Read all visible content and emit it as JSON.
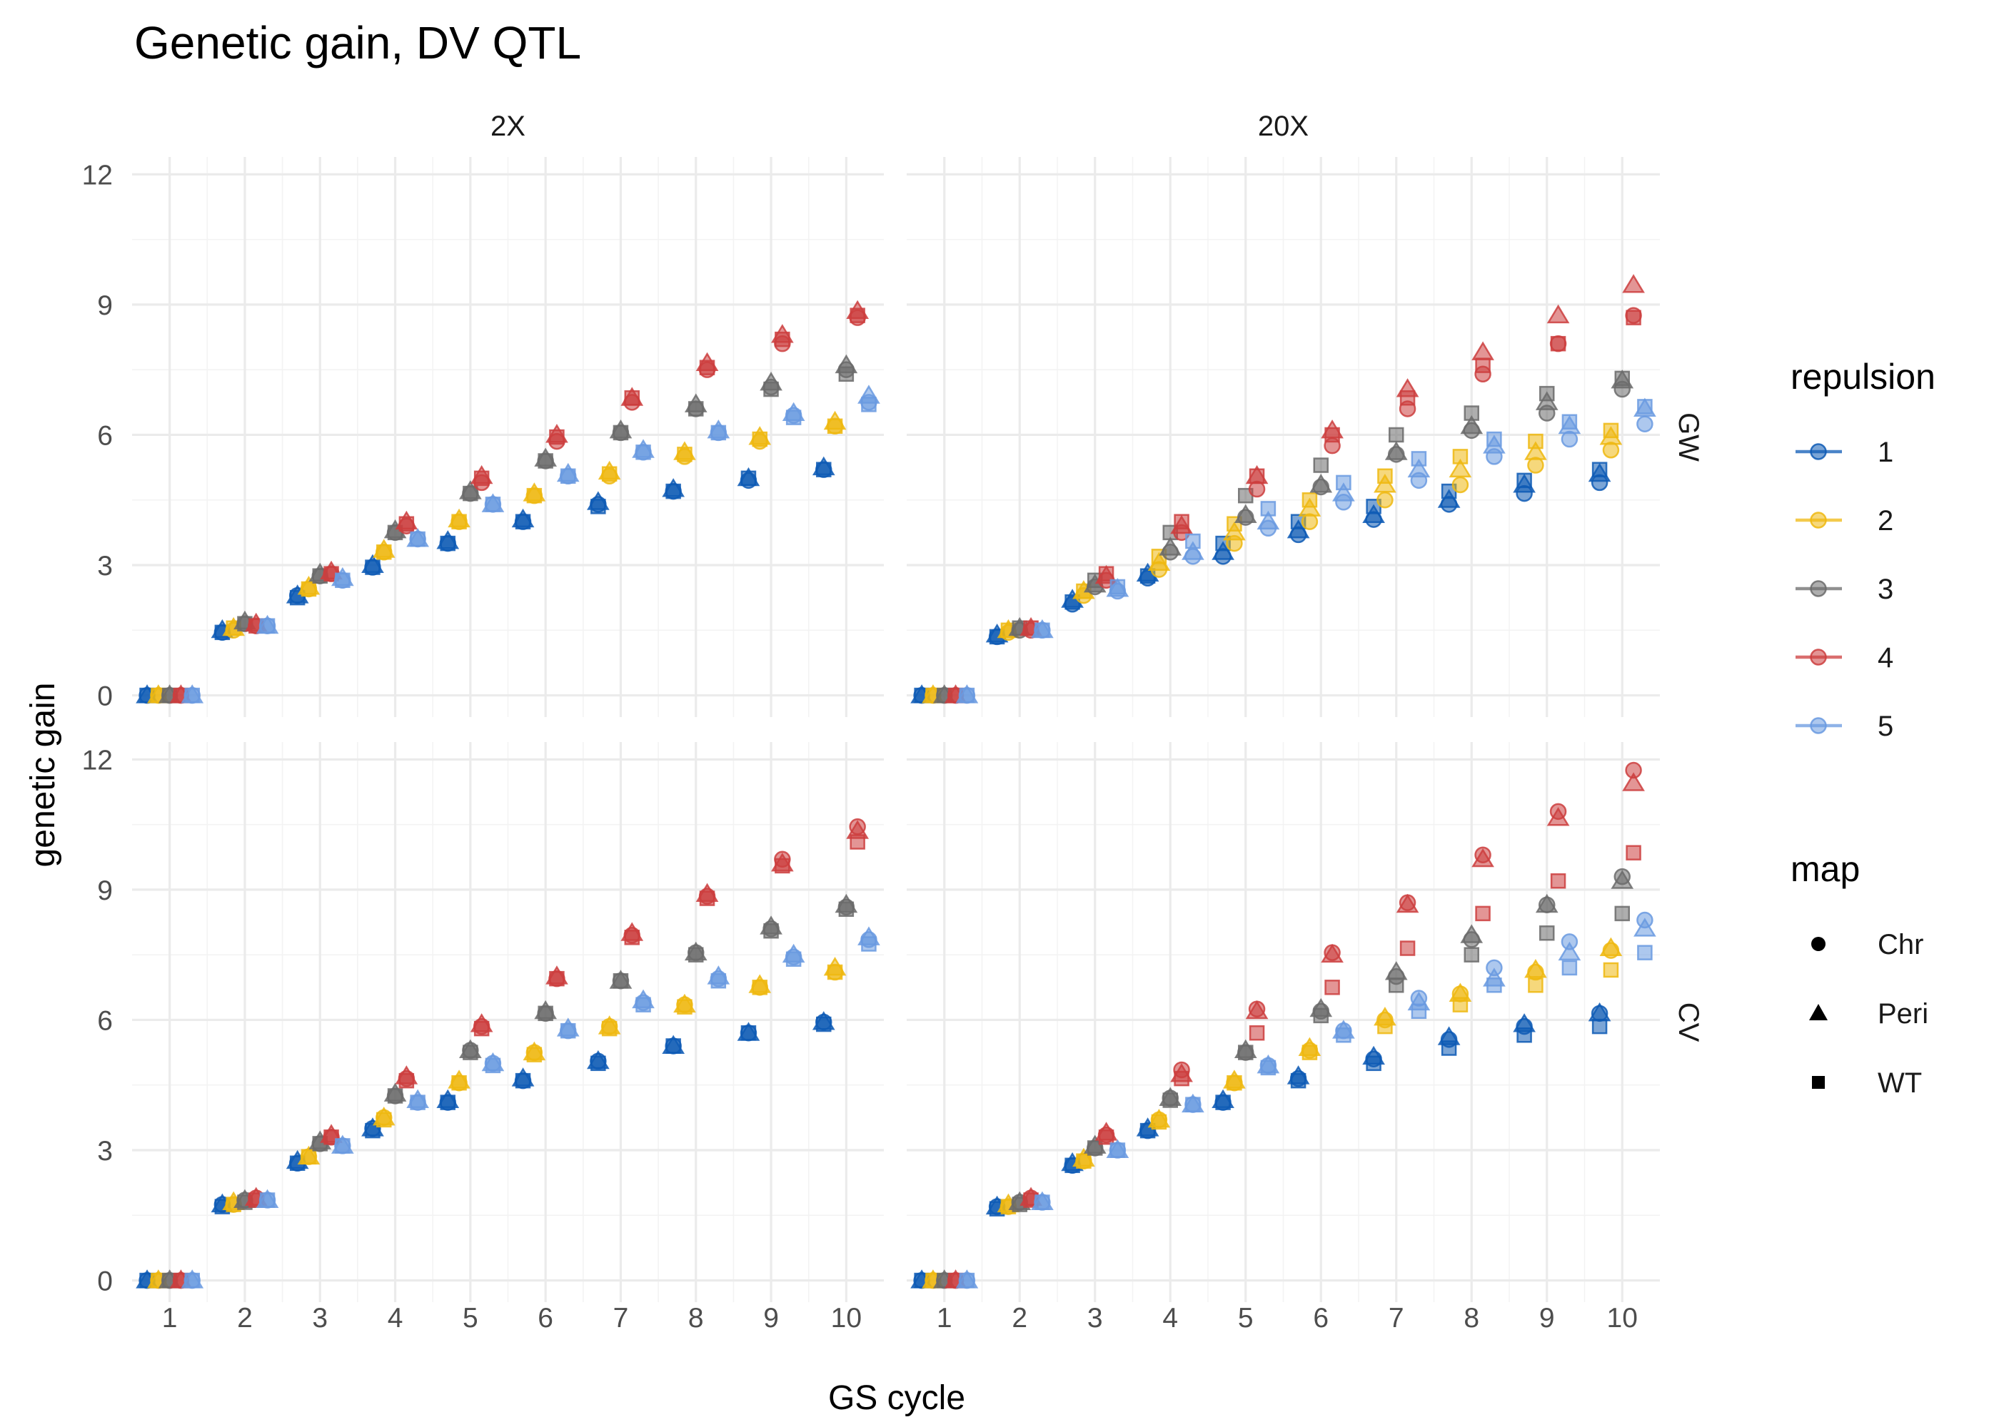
{
  "chart_data": {
    "type": "scatter",
    "title": "Genetic gain, DV QTL",
    "xlabel": "GS cycle",
    "ylabel": "genetic gain",
    "x_ticks": [
      "1",
      "2",
      "3",
      "4",
      "5",
      "6",
      "7",
      "8",
      "9",
      "10"
    ],
    "y_ticks": [
      "0",
      "3",
      "6",
      "9",
      "12"
    ],
    "ylim": [
      -0.5,
      12.4
    ],
    "xlim": [
      0.5,
      10.5
    ],
    "grid": true,
    "columns": [
      "2X",
      "20X"
    ],
    "rows": [
      "GW",
      "CV"
    ],
    "legend_position": "right",
    "repulsion_legend": {
      "title": "repulsion",
      "entries": [
        {
          "label": "1",
          "color": "#0e5bb5"
        },
        {
          "label": "2",
          "color": "#efb810"
        },
        {
          "label": "3",
          "color": "#6b6b6b"
        },
        {
          "label": "4",
          "color": "#cc3e3e"
        },
        {
          "label": "5",
          "color": "#6a9ae0"
        }
      ]
    },
    "map_legend": {
      "title": "map",
      "entries": [
        {
          "label": "Chr",
          "shape": "circle"
        },
        {
          "label": "Peri",
          "shape": "triangle"
        },
        {
          "label": "WT",
          "shape": "square"
        }
      ]
    },
    "panels": [
      {
        "column": "2X",
        "row": "GW",
        "series": {
          "1": {
            "Chr": [
              0,
              1.45,
              2.3,
              2.95,
              3.5,
              4.0,
              4.4,
              4.7,
              4.95,
              5.2
            ],
            "Peri": [
              0,
              1.5,
              2.3,
              3.0,
              3.55,
              4.05,
              4.45,
              4.75,
              5.0,
              5.25
            ],
            "WT": [
              0,
              1.45,
              2.25,
              2.95,
              3.5,
              4.0,
              4.35,
              4.7,
              5.0,
              5.2
            ]
          },
          "2": {
            "Chr": [
              0,
              1.5,
              2.45,
              3.3,
              4.0,
              4.6,
              5.05,
              5.5,
              5.85,
              6.2
            ],
            "Peri": [
              0,
              1.55,
              2.5,
              3.35,
              4.05,
              4.65,
              5.15,
              5.6,
              5.95,
              6.3
            ],
            "WT": [
              0,
              1.55,
              2.45,
              3.3,
              4.0,
              4.6,
              5.1,
              5.55,
              5.9,
              6.2
            ]
          },
          "3": {
            "Chr": [
              0,
              1.65,
              2.75,
              3.75,
              4.65,
              5.4,
              6.05,
              6.6,
              7.1,
              7.5
            ],
            "Peri": [
              0,
              1.7,
              2.8,
              3.8,
              4.7,
              5.45,
              6.1,
              6.7,
              7.2,
              7.6
            ],
            "WT": [
              0,
              1.65,
              2.75,
              3.75,
              4.65,
              5.4,
              6.05,
              6.6,
              7.05,
              7.4
            ]
          },
          "4": {
            "Chr": [
              0,
              1.6,
              2.8,
              3.9,
              4.9,
              5.85,
              6.75,
              7.5,
              8.1,
              8.7
            ],
            "Peri": [
              0,
              1.65,
              2.85,
              4.0,
              5.05,
              6.0,
              6.85,
              7.65,
              8.3,
              8.85
            ],
            "WT": [
              0,
              1.6,
              2.8,
              3.95,
              5.0,
              5.95,
              6.85,
              7.55,
              8.2,
              8.75
            ]
          },
          "5": {
            "Chr": [
              0,
              1.6,
              2.65,
              3.6,
              4.4,
              5.05,
              5.6,
              6.05,
              6.45,
              6.75
            ],
            "Peri": [
              0,
              1.6,
              2.7,
              3.6,
              4.4,
              5.1,
              5.65,
              6.1,
              6.5,
              6.9
            ],
            "WT": [
              0,
              1.6,
              2.65,
              3.6,
              4.4,
              5.05,
              5.6,
              6.05,
              6.4,
              6.7
            ]
          }
        }
      },
      {
        "column": "20X",
        "row": "GW",
        "series": {
          "1": {
            "Chr": [
              0,
              1.35,
              2.1,
              2.7,
              3.2,
              3.7,
              4.05,
              4.4,
              4.65,
              4.9
            ],
            "Peri": [
              0,
              1.4,
              2.2,
              2.8,
              3.3,
              3.8,
              4.15,
              4.5,
              4.85,
              5.1
            ],
            "WT": [
              0,
              1.35,
              2.15,
              2.75,
              3.5,
              4.0,
              4.35,
              4.7,
              4.95,
              5.2
            ]
          },
          "2": {
            "Chr": [
              0,
              1.45,
              2.3,
              2.9,
              3.5,
              4.0,
              4.5,
              4.85,
              5.3,
              5.65
            ],
            "Peri": [
              0,
              1.5,
              2.4,
              3.05,
              3.75,
              4.3,
              4.85,
              5.2,
              5.6,
              5.95
            ],
            "WT": [
              0,
              1.5,
              2.4,
              3.2,
              3.95,
              4.5,
              5.05,
              5.5,
              5.85,
              6.1
            ]
          },
          "3": {
            "Chr": [
              0,
              1.5,
              2.5,
              3.3,
              4.1,
              4.8,
              5.55,
              6.1,
              6.5,
              7.05
            ],
            "Peri": [
              0,
              1.55,
              2.55,
              3.4,
              4.15,
              4.85,
              5.6,
              6.2,
              6.75,
              7.25
            ],
            "WT": [
              0,
              1.55,
              2.65,
              3.75,
              4.6,
              5.3,
              6.0,
              6.5,
              6.95,
              7.3
            ]
          },
          "4": {
            "Chr": [
              0,
              1.5,
              2.65,
              3.75,
              4.75,
              5.75,
              6.6,
              7.4,
              8.1,
              8.75
            ],
            "Peri": [
              0,
              1.55,
              2.75,
              3.9,
              5.05,
              6.1,
              7.05,
              7.9,
              8.75,
              9.45
            ],
            "WT": [
              0,
              1.55,
              2.8,
              4.0,
              5.05,
              6.0,
              6.85,
              7.6,
              8.1,
              8.7
            ]
          },
          "5": {
            "Chr": [
              0,
              1.5,
              2.4,
              3.2,
              3.85,
              4.45,
              4.95,
              5.5,
              5.9,
              6.25
            ],
            "Peri": [
              0,
              1.5,
              2.45,
              3.3,
              4.0,
              4.65,
              5.2,
              5.75,
              6.2,
              6.6
            ],
            "WT": [
              0,
              1.5,
              2.5,
              3.55,
              4.3,
              4.9,
              5.45,
              5.9,
              6.3,
              6.65
            ]
          }
        }
      },
      {
        "column": "2X",
        "row": "CV",
        "series": {
          "1": {
            "Chr": [
              0,
              1.75,
              2.7,
              3.5,
              4.1,
              4.6,
              5.05,
              5.4,
              5.7,
              5.95
            ],
            "Peri": [
              0,
              1.75,
              2.75,
              3.5,
              4.15,
              4.65,
              5.05,
              5.4,
              5.7,
              5.95
            ],
            "WT": [
              0,
              1.7,
              2.7,
              3.45,
              4.1,
              4.6,
              5.0,
              5.4,
              5.7,
              5.9
            ]
          },
          "2": {
            "Chr": [
              0,
              1.75,
              2.85,
              3.75,
              4.55,
              5.25,
              5.85,
              6.35,
              6.75,
              7.1
            ],
            "Peri": [
              0,
              1.8,
              2.85,
              3.75,
              4.6,
              5.25,
              5.85,
              6.35,
              6.8,
              7.2
            ],
            "WT": [
              0,
              1.75,
              2.85,
              3.7,
              4.55,
              5.2,
              5.8,
              6.3,
              6.75,
              7.1
            ]
          },
          "3": {
            "Chr": [
              0,
              1.85,
              3.15,
              4.25,
              5.3,
              6.15,
              6.9,
              7.55,
              8.1,
              8.6
            ],
            "Peri": [
              0,
              1.85,
              3.2,
              4.3,
              5.3,
              6.2,
              6.9,
              7.55,
              8.15,
              8.65
            ],
            "WT": [
              0,
              1.8,
              3.15,
              4.25,
              5.25,
              6.15,
              6.9,
              7.5,
              8.05,
              8.55
            ]
          },
          "4": {
            "Chr": [
              0,
              1.9,
              3.3,
              4.65,
              5.85,
              6.95,
              7.95,
              8.85,
              9.7,
              10.45
            ],
            "Peri": [
              0,
              1.9,
              3.35,
              4.7,
              5.9,
              7.0,
              8.0,
              8.9,
              9.6,
              10.35
            ],
            "WT": [
              0,
              1.85,
              3.3,
              4.6,
              5.8,
              6.95,
              7.9,
              8.8,
              9.55,
              10.1
            ]
          },
          "5": {
            "Chr": [
              0,
              1.85,
              3.1,
              4.1,
              5.0,
              5.75,
              6.4,
              6.95,
              7.45,
              7.85
            ],
            "Peri": [
              0,
              1.85,
              3.1,
              4.15,
              5.0,
              5.8,
              6.45,
              7.0,
              7.5,
              7.9
            ],
            "WT": [
              0,
              1.85,
              3.1,
              4.1,
              4.95,
              5.75,
              6.35,
              6.9,
              7.4,
              7.75
            ]
          }
        }
      },
      {
        "column": "20X",
        "row": "CV",
        "series": {
          "1": {
            "Chr": [
              0,
              1.7,
              2.65,
              3.45,
              4.1,
              4.65,
              5.1,
              5.55,
              5.85,
              6.15
            ],
            "Peri": [
              0,
              1.7,
              2.7,
              3.5,
              4.15,
              4.7,
              5.15,
              5.6,
              5.9,
              6.15
            ],
            "WT": [
              0,
              1.65,
              2.65,
              3.45,
              4.1,
              4.6,
              5.0,
              5.35,
              5.65,
              5.85
            ]
          },
          "2": {
            "Chr": [
              0,
              1.7,
              2.75,
              3.7,
              4.55,
              5.3,
              6.0,
              6.6,
              7.1,
              7.6
            ],
            "Peri": [
              0,
              1.75,
              2.8,
              3.7,
              4.6,
              5.35,
              6.05,
              6.6,
              7.15,
              7.65
            ],
            "WT": [
              0,
              1.7,
              2.75,
              3.65,
              4.55,
              5.25,
              5.85,
              6.35,
              6.8,
              7.15
            ]
          },
          "3": {
            "Chr": [
              0,
              1.8,
              3.05,
              4.2,
              5.25,
              6.2,
              7.0,
              7.85,
              8.65,
              9.3
            ],
            "Peri": [
              0,
              1.8,
              3.1,
              4.2,
              5.3,
              6.25,
              7.1,
              7.95,
              8.65,
              9.2
            ],
            "WT": [
              0,
              1.75,
              3.05,
              4.15,
              5.25,
              6.1,
              6.8,
              7.5,
              8.0,
              8.45
            ]
          },
          "4": {
            "Chr": [
              0,
              1.9,
              3.35,
              4.85,
              6.25,
              7.55,
              8.7,
              9.8,
              10.8,
              11.75
            ],
            "Peri": [
              0,
              1.9,
              3.4,
              4.75,
              6.2,
              7.5,
              8.65,
              9.7,
              10.65,
              11.45
            ],
            "WT": [
              0,
              1.85,
              3.3,
              4.65,
              5.7,
              6.75,
              7.65,
              8.45,
              9.2,
              9.85
            ]
          },
          "5": {
            "Chr": [
              0,
              1.8,
              3.0,
              4.05,
              4.95,
              5.75,
              6.5,
              7.2,
              7.8,
              8.3
            ],
            "Peri": [
              0,
              1.8,
              3.0,
              4.05,
              4.95,
              5.75,
              6.4,
              6.95,
              7.55,
              8.1
            ],
            "WT": [
              0,
              1.8,
              3.0,
              4.05,
              4.9,
              5.65,
              6.2,
              6.8,
              7.2,
              7.55
            ]
          }
        }
      }
    ]
  }
}
